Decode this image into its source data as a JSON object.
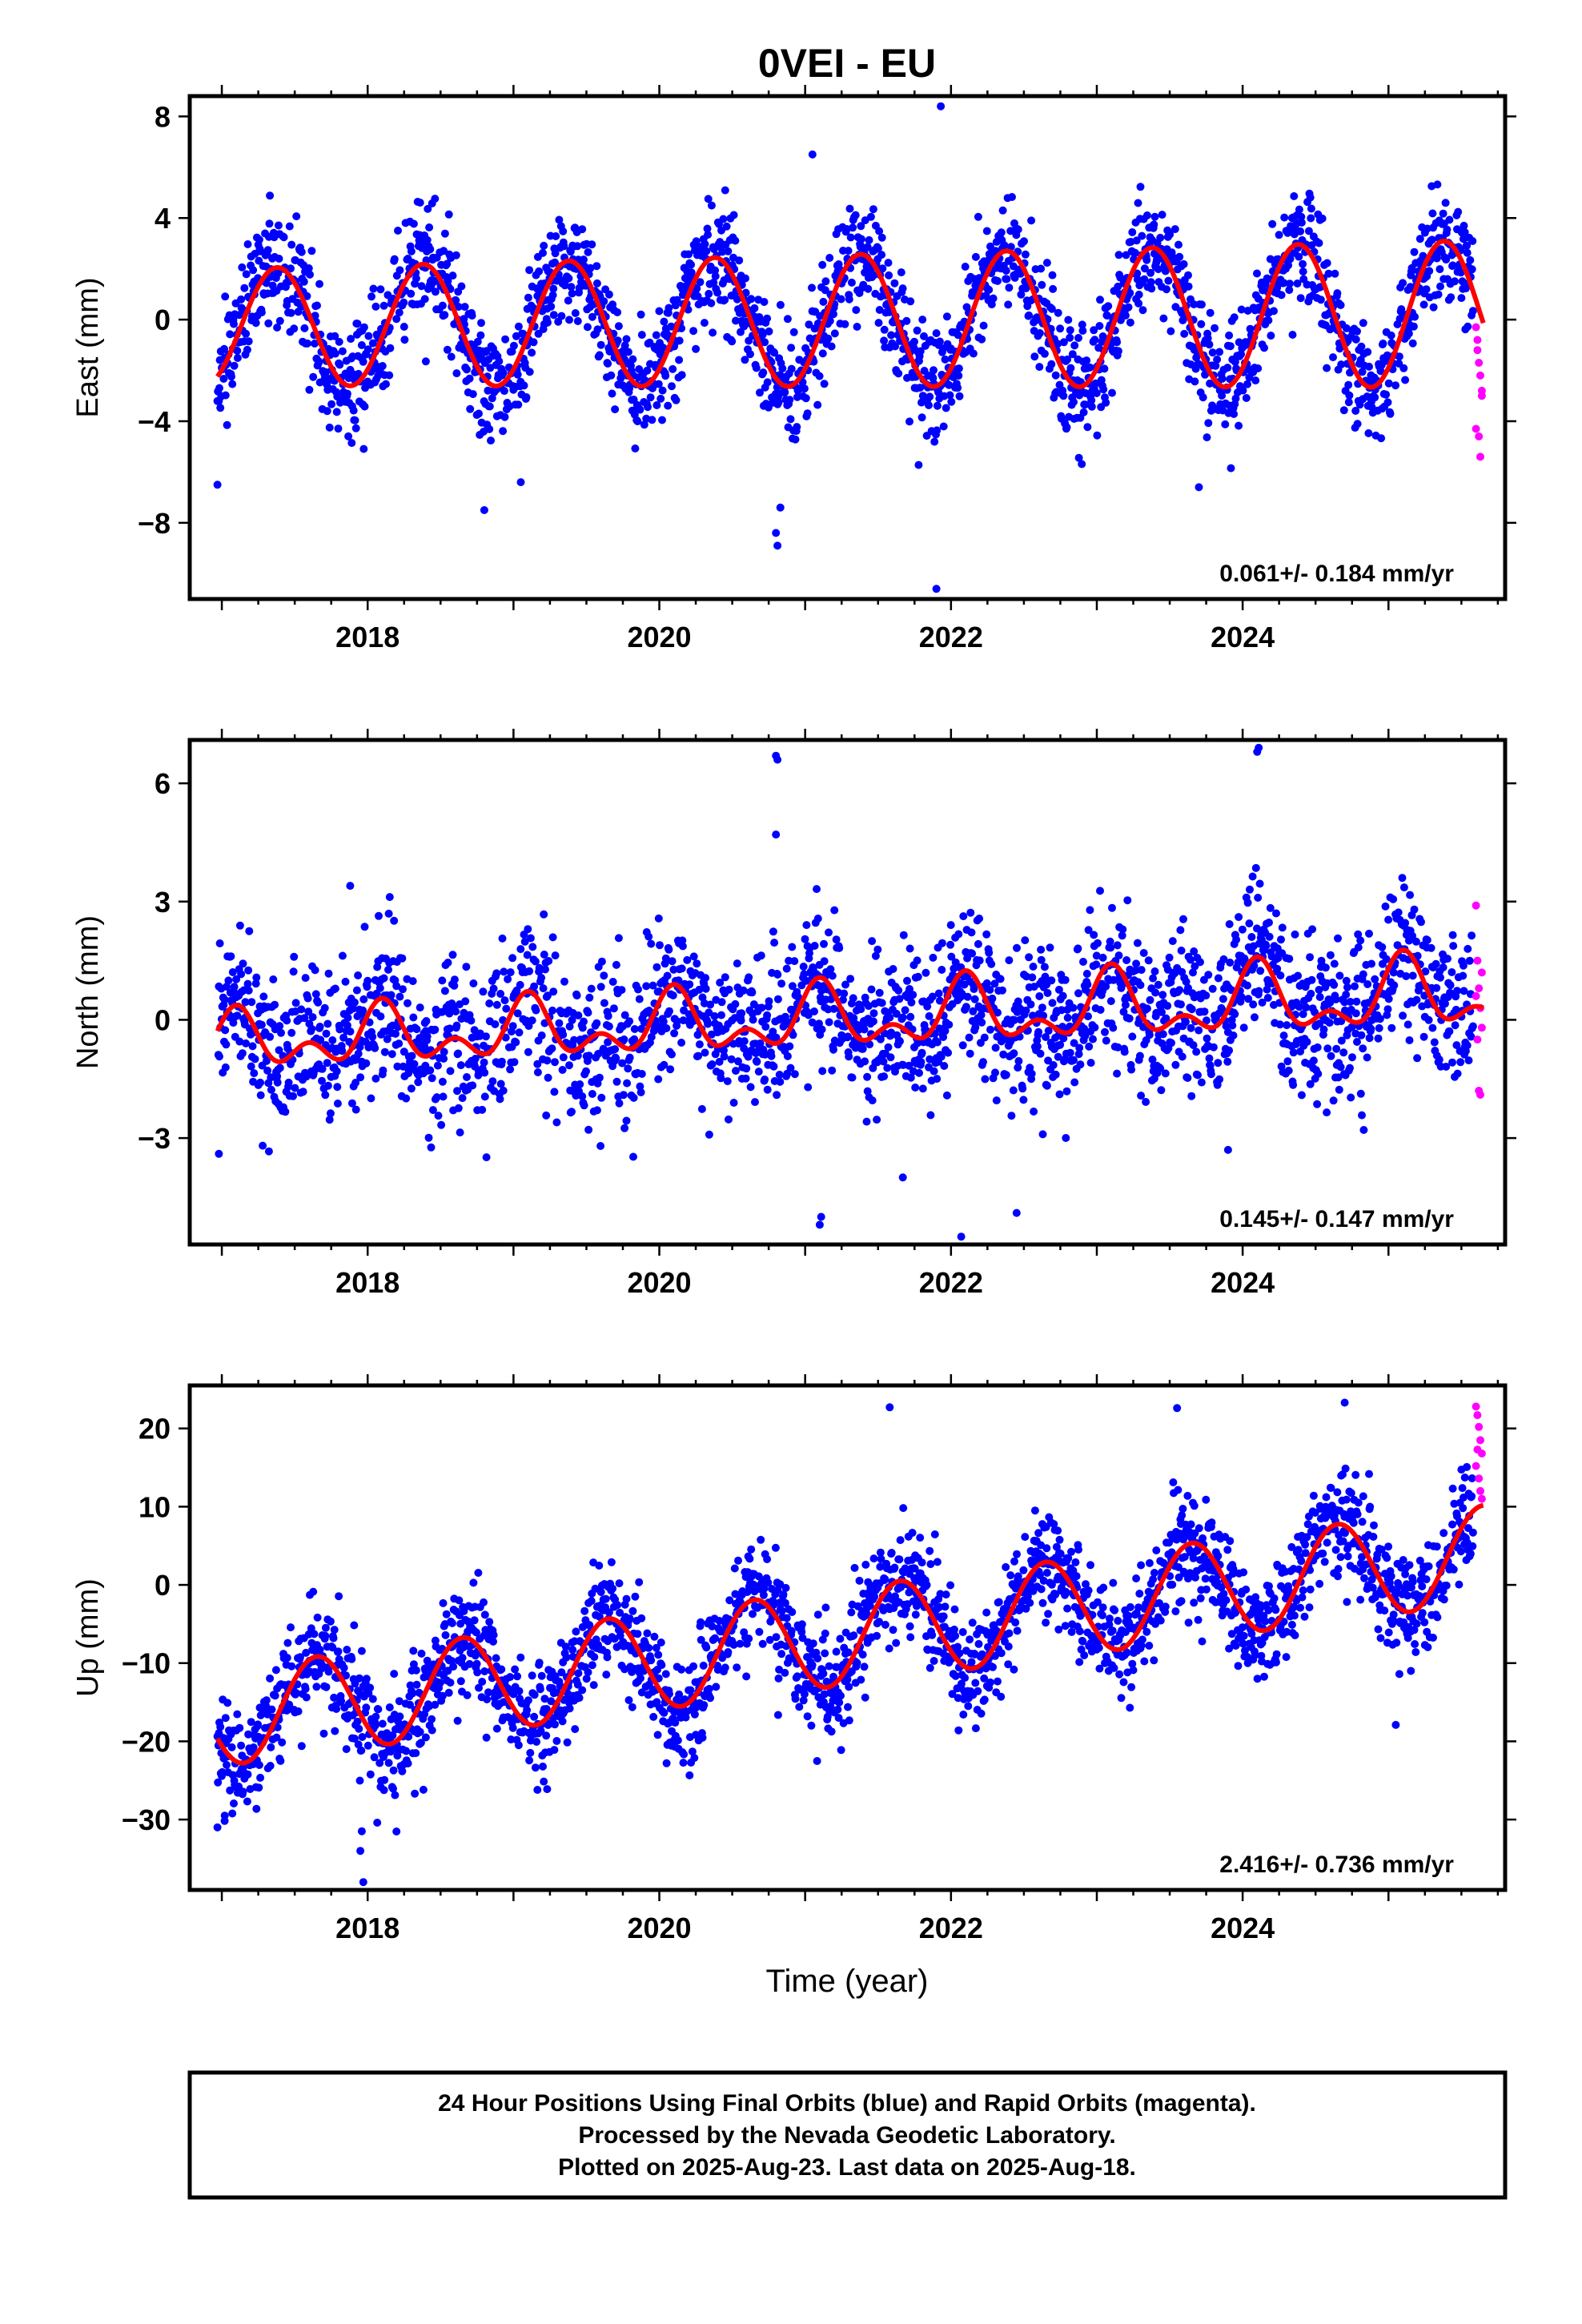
{
  "title": "0VEI - EU",
  "xlabel": "Time (year)",
  "footer": {
    "line1": "24 Hour Positions Using Final Orbits (blue) and Rapid Orbits (magenta).",
    "line2": "Processed by the Nevada Geodetic Laboratory.",
    "line3": "Plotted on 2025-Aug-23. Last data on 2025-Aug-18."
  },
  "colors": {
    "final": "#0000ff",
    "rapid": "#ff00ff",
    "model": "#ff0000",
    "frame": "#000000"
  },
  "chart_data": [
    {
      "type": "scatter",
      "id": "east",
      "ylabel": "East (mm)",
      "rate": "0.061+/- 0.184 mm/yr",
      "xlim": [
        2016.78,
        2025.8
      ],
      "ylim": [
        -11,
        8.8
      ],
      "xticks": [
        2018,
        2020,
        2022,
        2024
      ],
      "yticks": [
        8,
        4,
        0,
        -4,
        -8
      ],
      "ytick_labels": [
        "8",
        "4",
        "0",
        "−4",
        "−8"
      ],
      "model": {
        "start": 2016.97,
        "end": 2025.65,
        "offset": -0.3,
        "trend": 0.061,
        "annual": 2.3,
        "annual_peak": 0.38,
        "annual_growth": 0.03,
        "semiannual": 0,
        "semi_phase": 0
      },
      "scatter": {
        "seed": 11,
        "start": 2016.97,
        "end": 2025.58,
        "step": 0.0033,
        "noise": 1.1,
        "outliers": [
          [
            2020.81,
            -8.9
          ],
          [
            2020.8,
            -8.4
          ],
          [
            2020.83,
            -7.4
          ],
          [
            2021.9,
            -10.6
          ],
          [
            2021.93,
            8.4
          ],
          [
            2021.05,
            6.5
          ],
          [
            2018.8,
            -7.5
          ],
          [
            2023.7,
            -6.6
          ],
          [
            2016.97,
            -6.5
          ],
          [
            2019.05,
            -6.4
          ]
        ]
      },
      "rapid": {
        "x": [
          2025.6,
          2025.61,
          2025.62,
          2025.63,
          2025.64,
          2025.6,
          2025.62,
          2025.63,
          2025.64,
          2025.61
        ],
        "y": [
          -0.3,
          -1.2,
          -1.7,
          -2.2,
          -3.0,
          -4.3,
          -4.6,
          -5.4,
          -2.8,
          -0.8
        ]
      }
    },
    {
      "type": "scatter",
      "id": "north",
      "ylabel": "North (mm)",
      "rate": "0.145+/- 0.147 mm/yr",
      "xlim": [
        2016.78,
        2025.8
      ],
      "ylim": [
        -5.7,
        7.1
      ],
      "xticks": [
        2018,
        2020,
        2022,
        2024
      ],
      "yticks": [
        6,
        3,
        0,
        -3
      ],
      "ytick_labels": [
        "6",
        "3",
        "0",
        "−3"
      ],
      "model": {
        "start": 2016.97,
        "end": 2025.65,
        "offset": -0.6,
        "trend": 0.145,
        "annual": 0.5,
        "annual_peak": 0.1,
        "annual_growth": 0.06,
        "semiannual": 0.45,
        "semi_phase": 0.1
      },
      "scatter": {
        "seed": 23,
        "start": 2016.97,
        "end": 2025.58,
        "step": 0.0033,
        "noise": 0.95,
        "outliers": [
          [
            2020.8,
            6.7
          ],
          [
            2020.81,
            6.6
          ],
          [
            2024.1,
            6.8
          ],
          [
            2024.11,
            6.9
          ],
          [
            2020.8,
            4.7
          ],
          [
            2021.1,
            -5.2
          ],
          [
            2021.11,
            -5.0
          ],
          [
            2022.07,
            -5.5
          ],
          [
            2022.45,
            -4.9
          ],
          [
            2021.67,
            -4.0
          ],
          [
            2017.88,
            3.4
          ],
          [
            2023.9,
            -3.3
          ],
          [
            2016.98,
            -3.4
          ]
        ]
      },
      "rapid": {
        "x": [
          2025.6,
          2025.61,
          2025.62,
          2025.63,
          2025.64,
          2025.6,
          2025.62,
          2025.63,
          2025.64,
          2025.61
        ],
        "y": [
          2.9,
          1.5,
          0.8,
          0.3,
          -0.2,
          0.6,
          -1.8,
          -1.9,
          1.2,
          -0.5
        ]
      }
    },
    {
      "type": "scatter",
      "id": "up",
      "ylabel": "Up (mm)",
      "rate": "2.416+/- 0.736 mm/yr",
      "xlim": [
        2016.78,
        2025.8
      ],
      "ylim": [
        -39,
        25.5
      ],
      "xticks": [
        2018,
        2020,
        2022,
        2024
      ],
      "yticks": [
        20,
        10,
        0,
        -10,
        -20,
        -30
      ],
      "ytick_labels": [
        "20",
        "10",
        "0",
        "−10",
        "−20",
        "−30"
      ],
      "model": {
        "start": 2016.97,
        "end": 2025.65,
        "offset": -17.0,
        "trend": 2.416,
        "annual": 6.2,
        "annual_peak": 0.65,
        "annual_growth": 0,
        "semiannual": 0,
        "semi_phase": 0
      },
      "scatter": {
        "seed": 37,
        "start": 2016.97,
        "end": 2025.58,
        "step": 0.0033,
        "noise": 3.6,
        "outliers": [
          [
            2017.97,
            -38.0
          ],
          [
            2017.95,
            -34.0
          ],
          [
            2017.96,
            -31.5
          ],
          [
            2016.97,
            -31.0
          ],
          [
            2017.02,
            -29.5
          ],
          [
            2020.05,
            -22.8
          ],
          [
            2024.7,
            23.3
          ],
          [
            2021.58,
            22.7
          ],
          [
            2023.55,
            22.6
          ],
          [
            2025.05,
            -17.9
          ]
        ]
      },
      "rapid": {
        "x": [
          2025.6,
          2025.61,
          2025.62,
          2025.63,
          2025.64,
          2025.6,
          2025.62,
          2025.63,
          2025.64,
          2025.61
        ],
        "y": [
          22.8,
          21.7,
          20.2,
          18.5,
          16.8,
          15.2,
          13.6,
          12.0,
          11.0,
          17.3
        ]
      }
    }
  ]
}
